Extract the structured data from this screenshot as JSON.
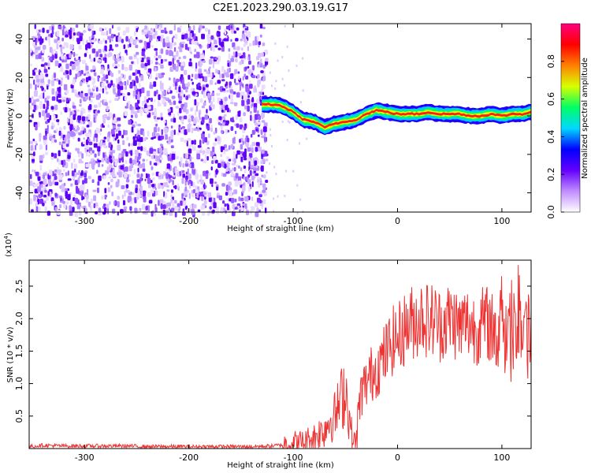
{
  "title": "C2E1.2023.290.03.19.G17",
  "chart_data": [
    {
      "type": "heatmap",
      "title": "C2E1.2023.290.03.19.G17",
      "xlabel": "Height of straight line (km)",
      "ylabel": "Frequency (Hz)",
      "xlim": [
        -353,
        128
      ],
      "ylim": [
        -50,
        48
      ],
      "x_ticks": [
        -300,
        -200,
        -100,
        0,
        100
      ],
      "y_ticks": [
        40,
        20,
        0,
        -20,
        -40
      ],
      "noise_region_x": [
        -353,
        -127
      ],
      "signal_track": {
        "x": [
          -130,
          -120,
          -110,
          -100,
          -90,
          -80,
          -70,
          -60,
          -50,
          -40,
          -30,
          -20,
          -10,
          0,
          10,
          20,
          30,
          40,
          50,
          60,
          70,
          80,
          90,
          100,
          110,
          120,
          128
        ],
        "frequency": [
          6,
          6,
          5,
          2,
          -2,
          -3,
          -6,
          -4,
          -3,
          -2,
          1,
          3,
          2,
          1,
          1,
          1,
          2,
          1,
          1,
          1,
          0,
          0,
          1,
          0,
          1,
          1,
          2
        ]
      },
      "colorbar": {
        "label": "Normalized spectral amplitude",
        "range": [
          0,
          1
        ],
        "ticks": [
          "0.0",
          "0.2",
          "0.4",
          "0.6",
          "0.8"
        ],
        "colors": [
          "#ffffff",
          "#c08cff",
          "#6400ff",
          "#0000ff",
          "#00d8ff",
          "#00ff64",
          "#d8ff00",
          "#ff8000",
          "#ff0000",
          "#ff0080"
        ]
      }
    },
    {
      "type": "line",
      "xlabel": "Height of straight line (km)",
      "ylabel": "SNR (10 * v/v)",
      "scale_note": "(x10",
      "scale_exp": "4",
      "scale_close": ")",
      "xlim": [
        -353,
        128
      ],
      "ylim": [
        0,
        2.9
      ],
      "x_ticks": [
        -300,
        -200,
        -100,
        0,
        100
      ],
      "y_ticks": [
        "0.5",
        "1.0",
        "1.5",
        "2.0",
        "2.5"
      ],
      "line_color": "#ee3333",
      "series": [
        {
          "x": [
            -353,
            -340,
            -320,
            -300,
            -280,
            -260,
            -240,
            -220,
            -200,
            -180,
            -160,
            -140,
            -120,
            -110,
            -100,
            -90,
            -80,
            -70,
            -65,
            -60,
            -55,
            -50,
            -47,
            -45,
            -42,
            -40,
            -37,
            -35,
            -30,
            -25,
            -20,
            -15,
            -10,
            -5,
            0,
            5,
            10,
            15,
            20,
            25,
            30,
            35,
            40,
            45,
            50,
            55,
            60,
            65,
            70,
            75,
            80,
            85,
            90,
            95,
            100,
            105,
            110,
            115,
            120,
            125,
            128
          ],
          "y": [
            0.03,
            0.05,
            0.04,
            0.04,
            0.04,
            0.04,
            0.03,
            0.03,
            0.03,
            0.03,
            0.03,
            0.03,
            0.04,
            0.06,
            0.09,
            0.1,
            0.18,
            0.3,
            0.45,
            0.5,
            0.7,
            0.95,
            0.6,
            0.3,
            0.1,
            0.08,
            0.6,
            0.85,
            1.0,
            1.15,
            1.25,
            1.35,
            1.5,
            1.65,
            1.7,
            1.8,
            1.9,
            1.95,
            2.0,
            2.05,
            1.95,
            2.0,
            1.9,
            1.95,
            2.0,
            1.95,
            1.85,
            1.95,
            1.9,
            1.85,
            1.9,
            1.95,
            1.85,
            1.8,
            1.9,
            1.85,
            1.7,
            1.95,
            1.9,
            1.85,
            1.9
          ]
        }
      ]
    }
  ]
}
